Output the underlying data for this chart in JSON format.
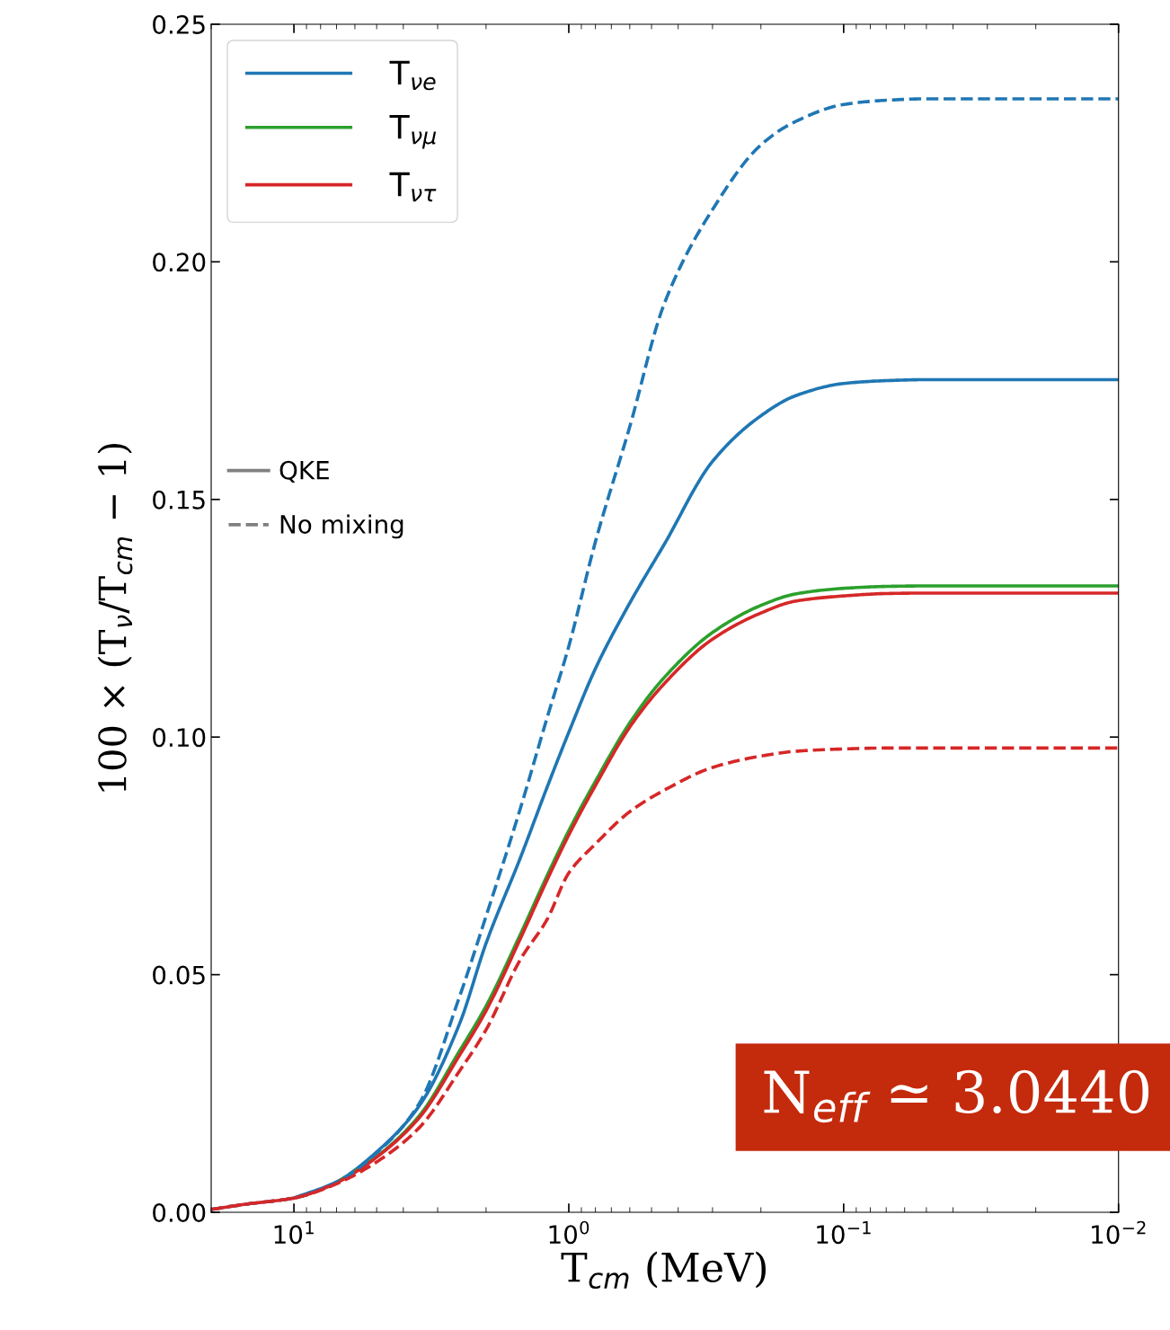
{
  "chart_data": {
    "type": "line",
    "xlabel": "T$_{cm}$ (MeV)",
    "ylabel": "100 × (T$_{ν}$/T$_{cm}$ − 1)",
    "log": "x",
    "xlim": [
      20,
      0.01
    ],
    "xticks": [
      {
        "value": 10,
        "label": "10$^{1}$"
      },
      {
        "value": 1,
        "label": "10$^{0}$"
      },
      {
        "value": 0.1,
        "label": "10$^{−1}$"
      },
      {
        "value": 0.01,
        "label": "10$^{−2}$"
      }
    ],
    "ylim": [
      0,
      0.25
    ],
    "yticks": [
      {
        "value": 0,
        "label": "0.00"
      },
      {
        "value": 0.05,
        "label": "0.05"
      },
      {
        "value": 0.1,
        "label": "0.10"
      },
      {
        "value": 0.15,
        "label": "0.15"
      },
      {
        "value": 0.2,
        "label": "0.20"
      },
      {
        "value": 0.25,
        "label": "0.25"
      }
    ],
    "x": [
      20,
      15,
      10,
      7,
      5,
      3.5,
      2.5,
      2,
      1.5,
      1.2,
      1,
      0.8,
      0.6,
      0.45,
      0.3,
      0.2,
      0.15,
      0.1,
      0.07,
      0.05,
      0.03,
      0.01
    ],
    "series": [
      {
        "name": "T$_{νe}$",
        "color": "#1f77b4",
        "line_style": "solid",
        "values": [
          null,
          null,
          0.003,
          0.0064,
          0.0127,
          0.0224,
          0.0396,
          0.0566,
          0.0746,
          0.0894,
          0.101,
          0.1144,
          0.1282,
          0.1405,
          0.158,
          0.1676,
          0.1718,
          0.1744,
          0.175,
          0.1752,
          0.1752,
          0.1752
        ]
      },
      {
        "name": "T$_{νμ}$",
        "color": "#2ca02c",
        "line_style": "solid",
        "values": [
          null,
          null,
          null,
          0.0062,
          0.0117,
          0.0203,
          0.0339,
          0.0434,
          0.0585,
          0.0708,
          0.0803,
          0.0907,
          0.103,
          0.1125,
          0.122,
          0.1277,
          0.1301,
          0.1313,
          0.1317,
          0.1318,
          0.1318,
          0.1318
        ]
      },
      {
        "name": "T$_{ντ}$",
        "color": "#d62728",
        "line_style": "solid",
        "values": [
          0.0006,
          0.0017,
          0.003,
          0.0062,
          0.0116,
          0.0199,
          0.033,
          0.0424,
          0.0576,
          0.0699,
          0.0794,
          0.0898,
          0.1021,
          0.1112,
          0.1206,
          0.1261,
          0.1286,
          0.1297,
          0.1302,
          0.1303,
          0.1303,
          0.1303
        ]
      },
      {
        "color": "#1f77b4",
        "line_style": "dashed",
        "values": [
          0.0006,
          0.0017,
          0.003,
          0.0063,
          0.0125,
          0.0229,
          0.0453,
          0.0623,
          0.085,
          0.104,
          0.1191,
          0.1411,
          0.1653,
          0.1911,
          0.211,
          0.2246,
          0.2295,
          0.2331,
          0.234,
          0.2343,
          0.2343,
          0.2343
        ]
      },
      {
        "color": "#d62728",
        "line_style": "dashed",
        "values": [
          0.0006,
          0.0017,
          0.003,
          0.006,
          0.0106,
          0.0178,
          0.0297,
          0.0384,
          0.0532,
          0.0616,
          0.0714,
          0.0775,
          0.0843,
          0.0888,
          0.0936,
          0.096,
          0.097,
          0.0975,
          0.0977,
          0.0977,
          0.0977,
          0.0977
        ]
      }
    ],
    "legend": "top left",
    "grid": false,
    "marker": "none",
    "annotations": [
      "QKE",
      "No mixing",
      "N$_{eff}$ ≃ 3.0440"
    ]
  }
}
